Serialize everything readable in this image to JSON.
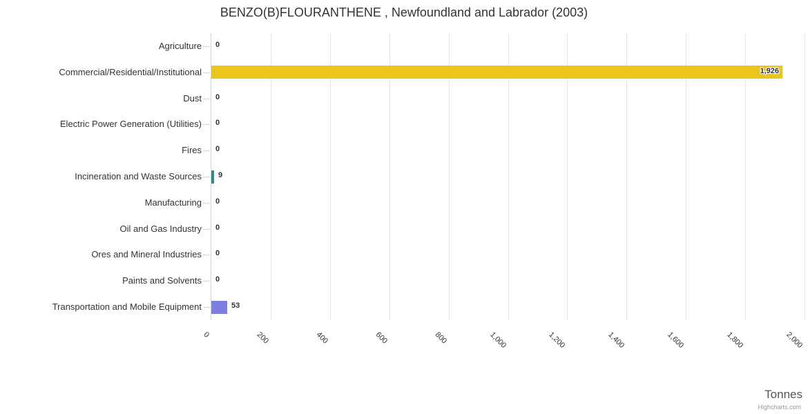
{
  "chart_data": {
    "type": "bar",
    "orientation": "horizontal",
    "title": "BENZO(B)FLOURANTHENE , Newfoundland and Labrador (2003)",
    "categories": [
      "Agriculture",
      "Commercial/Residential/Institutional",
      "Dust",
      "Electric Power Generation (Utilities)",
      "Fires",
      "Incineration and Waste Sources",
      "Manufacturing",
      "Oil and Gas Industry",
      "Ores and Mineral Industries",
      "Paints and Solvents",
      "Transportation and Mobile Equipment"
    ],
    "values": [
      0,
      1926,
      0,
      0,
      0,
      9,
      0,
      0,
      0,
      0,
      53
    ],
    "value_labels": [
      "0",
      "1,926",
      "0",
      "0",
      "0",
      "9",
      "0",
      "0",
      "0",
      "0",
      "53"
    ],
    "point_colors": [
      null,
      "#ECC51B",
      null,
      null,
      null,
      "#2F8B86",
      null,
      null,
      null,
      null,
      "#7C7FDE"
    ],
    "xlabel": "Tonnes",
    "xlim": [
      0,
      2000
    ],
    "x_tick_interval": 200,
    "x_tick_labels": [
      "0",
      "200",
      "400",
      "600",
      "800",
      "1,000",
      "1,200",
      "1,400",
      "1,600",
      "1,800",
      "2,000"
    ],
    "grid": true,
    "legend": false
  },
  "credits": {
    "label": "Highcharts.com"
  },
  "colors": {
    "background": "#ffffff",
    "title_text": "#333333",
    "category_label_text": "#333333",
    "data_label_text": "#333333",
    "x_tick_label_text": "#333333",
    "axis_title_text": "#555555",
    "credits_text": "#999999",
    "gridline": "#e6e6e6",
    "axis_line": "#ccd6eb",
    "tick_mark": "#ccd6eb"
  }
}
